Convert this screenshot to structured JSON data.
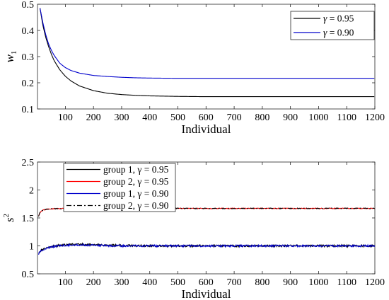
{
  "chart_data": [
    {
      "type": "line",
      "title": "",
      "xlabel": "Individual",
      "ylabel": "w_1",
      "ylabel_text": "w",
      "ylabel_sub": "1",
      "xlim": [
        1,
        1200
      ],
      "ylim": [
        0.1,
        0.5
      ],
      "xticks": [
        100,
        200,
        300,
        400,
        500,
        600,
        700,
        800,
        900,
        1000,
        1100,
        1200
      ],
      "xtick_labels": [
        "100",
        "200",
        "300",
        "400",
        "500",
        "600",
        "700",
        "800",
        "900",
        "1000",
        "1100",
        "1200"
      ],
      "yticks": [
        0.1,
        0.2,
        0.3,
        0.4,
        0.5
      ],
      "ytick_labels": [
        "0.1",
        "0.2",
        "0.3",
        "0.4",
        "0.5"
      ],
      "grid": false,
      "legend_position": "top-right",
      "series": [
        {
          "name": "γ = 0.95",
          "legend_prefix": "γ",
          "legend_value": " = 0.95",
          "color": "#000000",
          "dash": "solid",
          "x": [
            10,
            20,
            30,
            40,
            50,
            60,
            80,
            100,
            120,
            150,
            200,
            250,
            300,
            350,
            400,
            500,
            600,
            700,
            800,
            900,
            1000,
            1100,
            1200
          ],
          "y": [
            0.485,
            0.42,
            0.375,
            0.34,
            0.31,
            0.285,
            0.25,
            0.225,
            0.207,
            0.188,
            0.17,
            0.16,
            0.155,
            0.152,
            0.15,
            0.148,
            0.147,
            0.147,
            0.147,
            0.147,
            0.147,
            0.147,
            0.147
          ]
        },
        {
          "name": "γ = 0.90",
          "legend_prefix": "γ",
          "legend_value": " = 0.90",
          "color": "#0000cc",
          "dash": "solid",
          "x": [
            10,
            20,
            30,
            40,
            50,
            60,
            80,
            100,
            120,
            150,
            200,
            250,
            300,
            350,
            400,
            500,
            600,
            700,
            800,
            900,
            1000,
            1100,
            1200
          ],
          "y": [
            0.485,
            0.43,
            0.385,
            0.35,
            0.325,
            0.305,
            0.275,
            0.258,
            0.247,
            0.237,
            0.228,
            0.224,
            0.221,
            0.219,
            0.218,
            0.217,
            0.217,
            0.217,
            0.217,
            0.217,
            0.217,
            0.217,
            0.217
          ]
        }
      ]
    },
    {
      "type": "line",
      "title": "",
      "xlabel": "Individual",
      "ylabel": "s^2",
      "ylabel_text": "s",
      "ylabel_sup": "2",
      "xlim": [
        1,
        1200
      ],
      "ylim": [
        0.5,
        2.5
      ],
      "xticks": [
        100,
        200,
        300,
        400,
        500,
        600,
        700,
        800,
        900,
        1000,
        1100,
        1200
      ],
      "xtick_labels": [
        "100",
        "200",
        "300",
        "400",
        "500",
        "600",
        "700",
        "800",
        "900",
        "1000",
        "1100",
        "1200"
      ],
      "yticks": [
        0.5,
        1,
        1.5,
        2,
        2.5
      ],
      "ytick_labels": [
        "0.5",
        "1",
        "1.5",
        "2",
        "2.5"
      ],
      "grid": false,
      "legend_position": "top-left",
      "series": [
        {
          "name": "group 1, γ = 0.95",
          "legend_prefix": "group 1, γ",
          "legend_value": " = 0.95",
          "color": "#000000",
          "dash": "solid",
          "x": [
            5,
            15,
            30,
            60,
            100,
            150,
            200,
            300,
            400,
            500,
            600,
            700,
            800,
            900,
            1000,
            1100,
            1200
          ],
          "y": [
            0.87,
            0.93,
            0.96,
            1.0,
            1.02,
            1.03,
            1.02,
            1.01,
            1.0,
            1.0,
            1.0,
            1.0,
            1.0,
            1.0,
            1.0,
            1.0,
            1.0
          ]
        },
        {
          "name": "group 2, γ = 0.95",
          "legend_prefix": "group 2, γ",
          "legend_value": " = 0.95",
          "color": "#ff0000",
          "dash": "solid",
          "x": [
            5,
            10,
            20,
            40,
            60,
            100,
            200,
            400,
            600,
            800,
            1000,
            1200
          ],
          "y": [
            1.53,
            1.6,
            1.64,
            1.66,
            1.665,
            1.67,
            1.67,
            1.67,
            1.67,
            1.67,
            1.67,
            1.67
          ]
        },
        {
          "name": "group 1, γ = 0.90",
          "legend_prefix": "group 1, γ",
          "legend_value": " = 0.90",
          "color": "#0000cc",
          "dash": "solid",
          "x": [
            5,
            15,
            30,
            60,
            100,
            150,
            200,
            300,
            400,
            500,
            600,
            700,
            800,
            900,
            1000,
            1100,
            1200
          ],
          "y": [
            0.86,
            0.92,
            0.95,
            0.99,
            1.01,
            1.02,
            1.01,
            1.0,
            1.0,
            1.0,
            1.0,
            1.0,
            1.0,
            1.0,
            1.0,
            1.0,
            1.0
          ]
        },
        {
          "name": "group 2, γ = 0.90",
          "legend_prefix": "group 2, γ",
          "legend_value": " = 0.90",
          "color": "#000000",
          "dash": "dashdot",
          "x": [
            5,
            10,
            20,
            40,
            60,
            100,
            200,
            400,
            600,
            800,
            1000,
            1200
          ],
          "y": [
            1.53,
            1.6,
            1.64,
            1.66,
            1.665,
            1.67,
            1.67,
            1.67,
            1.67,
            1.67,
            1.67,
            1.67
          ]
        }
      ]
    }
  ]
}
